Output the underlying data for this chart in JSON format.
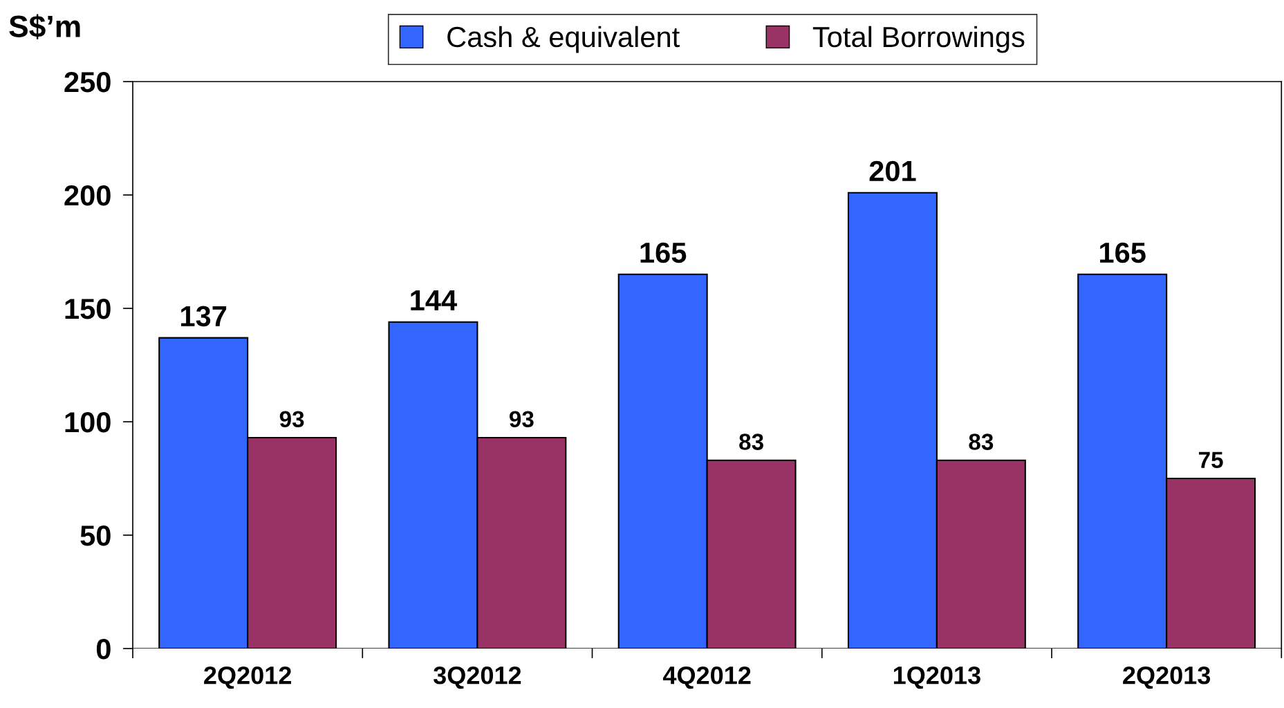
{
  "chart_data": {
    "type": "bar",
    "ylabel": "S$’m",
    "categories": [
      "2Q2012",
      "3Q2012",
      "4Q2012",
      "1Q2013",
      "2Q2013"
    ],
    "series": [
      {
        "name": "Cash & equivalent",
        "color": "#3366ff",
        "values": [
          137,
          144,
          165,
          201,
          165
        ]
      },
      {
        "name": "Total Borrowings",
        "color": "#993366",
        "values": [
          93,
          93,
          83,
          83,
          75
        ]
      }
    ],
    "ylim": [
      0,
      250
    ],
    "yticks": [
      0,
      50,
      100,
      150,
      200,
      250
    ],
    "grid": false,
    "legend": "top",
    "data_labels": true
  }
}
